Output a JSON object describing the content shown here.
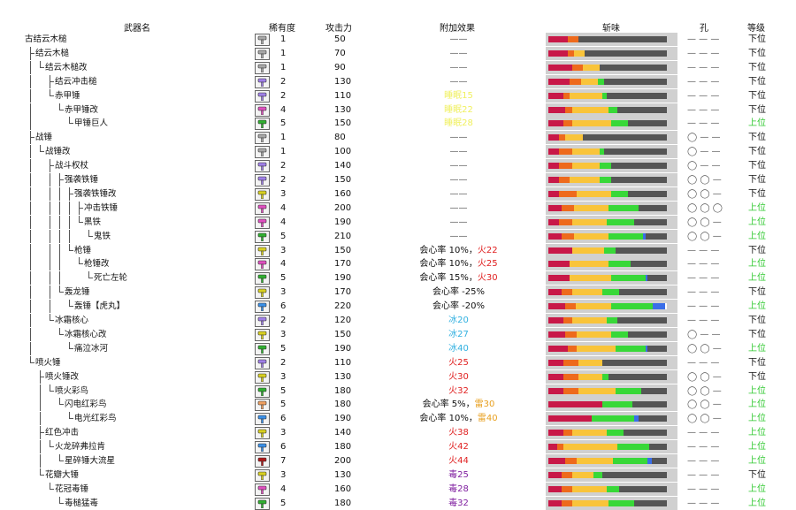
{
  "headers": {
    "name": "武器名",
    "rarity": "稀有度",
    "attack": "攻击力",
    "effect": "附加效果",
    "sharpness": "斩味",
    "slots": "孔",
    "grade": "等级"
  },
  "colors": {
    "red": "#c81848",
    "orange": "#ee6a1c",
    "yellow": "#f9c43a",
    "green": "#38d838",
    "blue": "#3a6ee8",
    "white": "#ffffff",
    "empty": "#555555"
  },
  "rows": [
    {
      "name": "古结云木槌",
      "depth": 0,
      "rarity": "1",
      "attack": "50",
      "effect": [
        {
          "text": "——",
          "color": "#555"
        }
      ],
      "slots": "— — —",
      "grade": "下位",
      "rc": "#a8a8a8",
      "sharp": [
        9,
        5,
        0,
        0,
        0,
        0
      ]
    },
    {
      "name": "结云木槌",
      "depth": 1,
      "rarity": "1",
      "attack": "70",
      "effect": [
        {
          "text": "——",
          "color": "#555"
        }
      ],
      "slots": "— — —",
      "grade": "下位",
      "rc": "#a8a8a8",
      "sharp": [
        9,
        3,
        5,
        0,
        0,
        0
      ]
    },
    {
      "name": "结云木槌改",
      "depth": 2,
      "rarity": "1",
      "attack": "90",
      "effect": [
        {
          "text": "——",
          "color": "#555"
        }
      ],
      "slots": "— — —",
      "grade": "下位",
      "rc": "#a8a8a8",
      "sharp": [
        11,
        5,
        8,
        0,
        0,
        0
      ]
    },
    {
      "name": "结云冲击槌",
      "depth": 3,
      "rarity": "2",
      "attack": "130",
      "effect": [
        {
          "text": "——",
          "color": "#555"
        }
      ],
      "slots": "— — —",
      "grade": "下位",
      "rc": "#a080e8",
      "sharp": [
        10,
        5,
        8,
        3,
        0,
        0
      ]
    },
    {
      "name": "赤甲锤",
      "depth": 3,
      "rarity": "2",
      "attack": "110",
      "effect": [
        {
          "text": "睡眠15",
          "color": "#f0f060"
        }
      ],
      "slots": "— — —",
      "grade": "下位",
      "rc": "#a080e8",
      "sharp": [
        7,
        3,
        15,
        2,
        0,
        0
      ]
    },
    {
      "name": "赤甲锤改",
      "depth": 4,
      "rarity": "4",
      "attack": "130",
      "effect": [
        {
          "text": "睡眠22",
          "color": "#f0f060"
        }
      ],
      "slots": "— — —",
      "grade": "下位",
      "rc": "#e050c0",
      "sharp": [
        8,
        3,
        17,
        4,
        0,
        0
      ]
    },
    {
      "name": "甲锤巨人",
      "depth": 5,
      "rarity": "5",
      "attack": "150",
      "effect": [
        {
          "text": "睡眠28",
          "color": "#f0f060"
        }
      ],
      "slots": "— — —",
      "grade": "上位",
      "rc": "#30b030",
      "sharp": [
        7,
        4,
        18,
        8,
        0,
        0
      ]
    },
    {
      "name": "战锤",
      "depth": 1,
      "rarity": "1",
      "attack": "80",
      "effect": [
        {
          "text": "——",
          "color": "#555"
        }
      ],
      "slots": "◯ — —",
      "grade": "下位",
      "rc": "#a8a8a8",
      "sharp": [
        5,
        3,
        8,
        0,
        0,
        0
      ]
    },
    {
      "name": "战锤改",
      "depth": 2,
      "rarity": "1",
      "attack": "100",
      "effect": [
        {
          "text": "——",
          "color": "#555"
        }
      ],
      "slots": "◯ — —",
      "grade": "下位",
      "rc": "#a8a8a8",
      "sharp": [
        5,
        6,
        13,
        2,
        0,
        0
      ]
    },
    {
      "name": "战斗权杖",
      "depth": 3,
      "rarity": "2",
      "attack": "140",
      "effect": [
        {
          "text": "——",
          "color": "#555"
        }
      ],
      "slots": "◯ — —",
      "grade": "下位",
      "rc": "#a080e8",
      "sharp": [
        5,
        6,
        13,
        5,
        0,
        0
      ]
    },
    {
      "name": "强袭铁锤",
      "depth": 4,
      "rarity": "2",
      "attack": "150",
      "effect": [
        {
          "text": "——",
          "color": "#555"
        }
      ],
      "slots": "◯ ◯ —",
      "grade": "下位",
      "rc": "#a080e8",
      "sharp": [
        5,
        5,
        14,
        5,
        0,
        0
      ]
    },
    {
      "name": "强袭铁锤改",
      "depth": 5,
      "rarity": "3",
      "attack": "160",
      "effect": [
        {
          "text": "——",
          "color": "#555"
        }
      ],
      "slots": "◯ ◯ —",
      "grade": "下位",
      "rc": "#d8d020",
      "sharp": [
        5,
        8,
        16,
        8,
        0,
        0
      ]
    },
    {
      "name": "冲击铁锤",
      "depth": 6,
      "rarity": "4",
      "attack": "200",
      "effect": [
        {
          "text": "——",
          "color": "#555"
        }
      ],
      "slots": "◯ ◯ ◯",
      "grade": "上位",
      "rc": "#e050c0",
      "sharp": [
        6,
        6,
        16,
        14,
        0,
        0
      ]
    },
    {
      "name": "黑铁",
      "depth": 6,
      "rarity": "4",
      "attack": "190",
      "effect": [
        {
          "text": "——",
          "color": "#555"
        }
      ],
      "slots": "◯ ◯ —",
      "grade": "上位",
      "rc": "#e050c0",
      "sharp": [
        5,
        6,
        16,
        13,
        0,
        0
      ]
    },
    {
      "name": "鬼铁",
      "depth": 7,
      "rarity": "5",
      "attack": "210",
      "effect": [
        {
          "text": "——",
          "color": "#555"
        }
      ],
      "slots": "◯ ◯ —",
      "grade": "上位",
      "rc": "#30b030",
      "sharp": [
        6,
        6,
        16,
        16,
        1,
        0
      ]
    },
    {
      "name": "枪锤",
      "depth": 5,
      "rarity": "3",
      "attack": "150",
      "effect": [
        {
          "text": "会心率 10%，",
          "color": "#111"
        },
        {
          "text": "火22",
          "color": "#e02020"
        }
      ],
      "slots": "— — —",
      "grade": "下位",
      "rc": "#d8d020",
      "sharp": [
        11,
        0,
        15,
        5,
        0,
        0
      ]
    },
    {
      "name": "枪锤改",
      "depth": 6,
      "rarity": "4",
      "attack": "170",
      "effect": [
        {
          "text": "会心率 10%，",
          "color": "#111"
        },
        {
          "text": "火25",
          "color": "#e02020"
        }
      ],
      "slots": "— — —",
      "grade": "上位",
      "rc": "#e050c0",
      "sharp": [
        10,
        0,
        18,
        10,
        0,
        0
      ]
    },
    {
      "name": "死亡左轮",
      "depth": 7,
      "rarity": "5",
      "attack": "190",
      "effect": [
        {
          "text": "会心率 15%，",
          "color": "#111"
        },
        {
          "text": "火30",
          "color": "#e02020"
        }
      ],
      "slots": "— — —",
      "grade": "上位",
      "rc": "#30b030",
      "sharp": [
        10,
        0,
        19,
        16,
        1,
        0
      ]
    },
    {
      "name": "轰龙锤",
      "depth": 4,
      "rarity": "3",
      "attack": "170",
      "effect": [
        {
          "text": "会心率 -25%",
          "color": "#111"
        }
      ],
      "slots": "— — —",
      "grade": "下位",
      "rc": "#d8d020",
      "sharp": [
        6,
        5,
        14,
        8,
        0,
        0
      ]
    },
    {
      "name": "轰锤【虎丸】",
      "depth": 5,
      "rarity": "6",
      "attack": "220",
      "effect": [
        {
          "text": "会心率 -20%",
          "color": "#111"
        }
      ],
      "slots": "— — —",
      "grade": "上位",
      "rc": "#3a90e8",
      "sharp": [
        8,
        5,
        17,
        20,
        6,
        1
      ]
    },
    {
      "name": "冰霜核心",
      "depth": 3,
      "rarity": "2",
      "attack": "120",
      "effect": [
        {
          "text": "冰20",
          "color": "#30b0e0"
        }
      ],
      "slots": "— — —",
      "grade": "下位",
      "rc": "#a080e8",
      "sharp": [
        7,
        4,
        16,
        5,
        0,
        0
      ]
    },
    {
      "name": "冰霜核心改",
      "depth": 4,
      "rarity": "3",
      "attack": "150",
      "effect": [
        {
          "text": "冰27",
          "color": "#30b0e0"
        }
      ],
      "slots": "◯ — —",
      "grade": "下位",
      "rc": "#d8d020",
      "sharp": [
        8,
        5,
        16,
        8,
        0,
        0
      ]
    },
    {
      "name": "痛泣冰河",
      "depth": 5,
      "rarity": "5",
      "attack": "190",
      "effect": [
        {
          "text": "冰40",
          "color": "#30b0e0"
        }
      ],
      "slots": "◯ ◯ —",
      "grade": "上位",
      "rc": "#30b030",
      "sharp": [
        9,
        4,
        18,
        14,
        1,
        0
      ]
    },
    {
      "name": "喷火锤",
      "depth": 1,
      "rarity": "2",
      "attack": "110",
      "effect": [
        {
          "text": "火25",
          "color": "#e02020"
        }
      ],
      "slots": "— — —",
      "grade": "下位",
      "rc": "#a080e8",
      "sharp": [
        7,
        7,
        11,
        0,
        0,
        0
      ]
    },
    {
      "name": "喷火锤改",
      "depth": 2,
      "rarity": "3",
      "attack": "130",
      "effect": [
        {
          "text": "火30",
          "color": "#e02020"
        }
      ],
      "slots": "◯ ◯ —",
      "grade": "下位",
      "rc": "#d8d020",
      "sharp": [
        7,
        7,
        11,
        3,
        0,
        0
      ]
    },
    {
      "name": "喷火彩鸟",
      "depth": 3,
      "rarity": "5",
      "attack": "180",
      "effect": [
        {
          "text": "火32",
          "color": "#e02020"
        }
      ],
      "slots": "◯ ◯ —",
      "grade": "上位",
      "rc": "#30b030",
      "sharp": [
        7,
        7,
        17,
        12,
        0,
        0
      ]
    },
    {
      "name": "闪电红彩鸟",
      "depth": 4,
      "rarity": "5",
      "attack": "180",
      "effect": [
        {
          "text": "会心率 5%，",
          "color": "#111"
        },
        {
          "text": "雷30",
          "color": "#e8a020"
        }
      ],
      "slots": "◯ ◯ —",
      "grade": "上位",
      "rc": "#f0a060",
      "sharp": [
        25,
        0,
        0,
        14,
        0,
        0
      ]
    },
    {
      "name": "电光红彩鸟",
      "depth": 5,
      "rarity": "6",
      "attack": "190",
      "effect": [
        {
          "text": "会心率 10%，",
          "color": "#111"
        },
        {
          "text": "雷40",
          "color": "#e8a020"
        }
      ],
      "slots": "◯ ◯ —",
      "grade": "上位",
      "rc": "#3a90e8",
      "sharp": [
        20,
        0,
        0,
        20,
        2,
        0
      ]
    },
    {
      "name": "红色冲击",
      "depth": 2,
      "rarity": "3",
      "attack": "140",
      "effect": [
        {
          "text": "火38",
          "color": "#e02020"
        }
      ],
      "slots": "— — —",
      "grade": "上位",
      "rc": "#d8d020",
      "sharp": [
        7,
        4,
        16,
        8,
        0,
        0
      ]
    },
    {
      "name": "火龙碎弗拉肯",
      "depth": 3,
      "rarity": "6",
      "attack": "180",
      "effect": [
        {
          "text": "火42",
          "color": "#e02020"
        }
      ],
      "slots": "— — —",
      "grade": "上位",
      "rc": "#3a90e8",
      "sharp": [
        4,
        3,
        25,
        15,
        0,
        0
      ]
    },
    {
      "name": "星碎锤大流星",
      "depth": 4,
      "rarity": "7",
      "attack": "200",
      "effect": [
        {
          "text": "火44",
          "color": "#e02020"
        }
      ],
      "slots": "— — —",
      "grade": "上位",
      "rc": "#b01818",
      "sharp": [
        8,
        5,
        17,
        16,
        2,
        0
      ]
    },
    {
      "name": "花瓣大锤",
      "depth": 2,
      "rarity": "3",
      "attack": "130",
      "effect": [
        {
          "text": "毒25",
          "color": "#8020a0"
        }
      ],
      "slots": "— — —",
      "grade": "下位",
      "rc": "#d8d020",
      "sharp": [
        6,
        5,
        10,
        4,
        0,
        0
      ]
    },
    {
      "name": "花冠毒锤",
      "depth": 3,
      "rarity": "4",
      "attack": "160",
      "effect": [
        {
          "text": "毒28",
          "color": "#8020a0"
        }
      ],
      "slots": "— — —",
      "grade": "上位",
      "rc": "#e050c0",
      "sharp": [
        6,
        5,
        16,
        6,
        0,
        0
      ]
    },
    {
      "name": "毒槌猛毒",
      "depth": 4,
      "rarity": "5",
      "attack": "180",
      "effect": [
        {
          "text": "毒32",
          "color": "#8020a0"
        }
      ],
      "slots": "— — —",
      "grade": "上位",
      "rc": "#30b030",
      "sharp": [
        6,
        5,
        17,
        12,
        0,
        0
      ]
    }
  ]
}
